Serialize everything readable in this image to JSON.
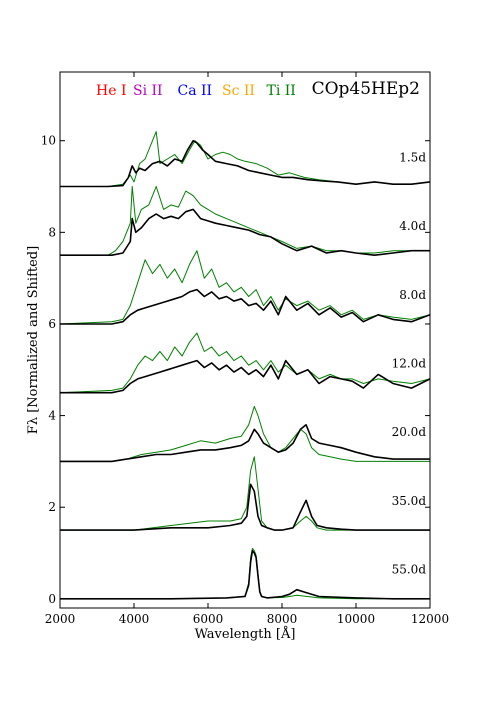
{
  "chart_data": {
    "type": "line",
    "title": "COp45HEp2",
    "xlabel": "Wavelength [Å]",
    "ylabel": "Fλ [Normalized and Shifted]",
    "xlim": [
      2000,
      12000
    ],
    "ylim": [
      -0.2,
      11.5
    ],
    "xticks": [
      "2000",
      "4000",
      "6000",
      "8000",
      "10000",
      "12000"
    ],
    "yticks": [
      "0",
      "2",
      "4",
      "6",
      "8",
      "10"
    ],
    "legend": {
      "placement": "top-left",
      "entries": [
        {
          "name": "He I",
          "color": "#ff0000"
        },
        {
          "name": "Si II",
          "color": "#bf00bf"
        },
        {
          "name": "Ca II",
          "color": "#0000ff"
        },
        {
          "name": "Sc II",
          "color": "#ffa500"
        },
        {
          "name": "Ti II",
          "color": "#008000"
        }
      ]
    },
    "epochs": [
      {
        "label": "1.5d",
        "offset": 9.0
      },
      {
        "label": "4.0d",
        "offset": 7.5
      },
      {
        "label": "8.0d",
        "offset": 6.0
      },
      {
        "label": "12.0d",
        "offset": 4.5
      },
      {
        "label": "20.0d",
        "offset": 3.0
      },
      {
        "label": "35.0d",
        "offset": 1.5
      },
      {
        "label": "55.0d",
        "offset": 0.0
      }
    ],
    "series": [
      {
        "epoch": "1.5d",
        "color": "#000000",
        "x": [
          2000,
          3300,
          3700,
          3850,
          3950,
          4050,
          4150,
          4300,
          4500,
          4700,
          4900,
          5100,
          5300,
          5450,
          5600,
          5700,
          5850,
          6000,
          6200,
          6500,
          6800,
          7100,
          7400,
          7700,
          8000,
          8300,
          8700,
          9100,
          9500,
          10000,
          10500,
          11000,
          11500,
          12000
        ],
        "y": [
          9.0,
          9.0,
          9.02,
          9.2,
          9.45,
          9.3,
          9.4,
          9.35,
          9.5,
          9.55,
          9.45,
          9.6,
          9.55,
          9.8,
          10.0,
          9.95,
          9.8,
          9.7,
          9.55,
          9.5,
          9.45,
          9.35,
          9.3,
          9.25,
          9.2,
          9.2,
          9.15,
          9.12,
          9.1,
          9.05,
          9.1,
          9.05,
          9.05,
          9.1
        ]
      },
      {
        "epoch": "1.5d",
        "color": "#008000",
        "x": [
          2000,
          3300,
          3700,
          3900,
          4000,
          4150,
          4300,
          4500,
          4600,
          4700,
          4900,
          5100,
          5300,
          5500,
          5650,
          5800,
          6000,
          6200,
          6400,
          6600,
          6800,
          7000,
          7300,
          7600,
          7900,
          8200,
          8600,
          9000,
          9500,
          10000,
          10500,
          11000,
          11500,
          12000
        ],
        "y": [
          9.0,
          9.0,
          9.05,
          9.25,
          9.1,
          9.5,
          9.6,
          10.0,
          10.2,
          9.5,
          9.6,
          9.7,
          9.5,
          9.8,
          10.0,
          9.9,
          9.6,
          9.7,
          9.75,
          9.7,
          9.6,
          9.55,
          9.5,
          9.4,
          9.25,
          9.3,
          9.2,
          9.15,
          9.1,
          9.05,
          9.1,
          9.05,
          9.05,
          9.1
        ]
      },
      {
        "epoch": "4.0d",
        "color": "#000000",
        "x": [
          2000,
          3400,
          3700,
          3900,
          3950,
          4050,
          4200,
          4400,
          4600,
          4800,
          5000,
          5200,
          5400,
          5600,
          5800,
          6000,
          6200,
          6500,
          6800,
          7100,
          7400,
          7700,
          8000,
          8400,
          8800,
          9200,
          9600,
          10000,
          10500,
          11000,
          11500,
          12000
        ],
        "y": [
          7.5,
          7.5,
          7.55,
          7.8,
          8.3,
          8.0,
          8.1,
          8.3,
          8.4,
          8.3,
          8.35,
          8.3,
          8.45,
          8.5,
          8.3,
          8.25,
          8.2,
          8.15,
          8.1,
          8.05,
          7.95,
          7.9,
          7.75,
          7.6,
          7.7,
          7.55,
          7.6,
          7.55,
          7.5,
          7.55,
          7.6,
          7.6
        ]
      },
      {
        "epoch": "4.0d",
        "color": "#008000",
        "x": [
          2000,
          3300,
          3500,
          3700,
          3900,
          3950,
          4050,
          4200,
          4400,
          4600,
          4800,
          5000,
          5200,
          5400,
          5600,
          5800,
          6000,
          6200,
          6500,
          6800,
          7100,
          7400,
          7700,
          8000,
          8400,
          8800,
          9200,
          9600,
          10000,
          10500,
          11000,
          11500,
          12000
        ],
        "y": [
          7.5,
          7.5,
          7.6,
          7.8,
          8.2,
          9.0,
          8.2,
          8.5,
          8.6,
          9.0,
          8.5,
          8.6,
          8.55,
          8.9,
          8.8,
          8.6,
          8.5,
          8.4,
          8.3,
          8.2,
          8.1,
          8.0,
          7.9,
          7.8,
          7.65,
          7.7,
          7.6,
          7.6,
          7.55,
          7.55,
          7.6,
          7.6,
          7.6
        ]
      },
      {
        "epoch": "8.0d",
        "color": "#000000",
        "x": [
          2000,
          3400,
          3700,
          3900,
          4100,
          4300,
          4500,
          4700,
          4900,
          5100,
          5300,
          5500,
          5700,
          5900,
          6100,
          6300,
          6500,
          6700,
          6900,
          7100,
          7300,
          7500,
          7700,
          7900,
          8100,
          8400,
          8700,
          9000,
          9300,
          9600,
          9900,
          10200,
          10600,
          11000,
          11500,
          12000
        ],
        "y": [
          6.0,
          6.0,
          6.05,
          6.2,
          6.3,
          6.35,
          6.4,
          6.45,
          6.5,
          6.55,
          6.6,
          6.7,
          6.75,
          6.6,
          6.7,
          6.55,
          6.6,
          6.5,
          6.55,
          6.4,
          6.45,
          6.3,
          6.5,
          6.2,
          6.6,
          6.3,
          6.45,
          6.2,
          6.35,
          6.15,
          6.25,
          6.05,
          6.2,
          6.1,
          6.05,
          6.2
        ]
      },
      {
        "epoch": "8.0d",
        "color": "#008000",
        "x": [
          2000,
          3400,
          3700,
          3900,
          4100,
          4300,
          4500,
          4700,
          4900,
          5100,
          5300,
          5500,
          5700,
          5900,
          6100,
          6300,
          6500,
          6700,
          6900,
          7100,
          7300,
          7500,
          7700,
          7900,
          8100,
          8400,
          8700,
          9000,
          9300,
          9600,
          9900,
          10200,
          10600,
          11000,
          11500,
          12000
        ],
        "y": [
          6.0,
          6.05,
          6.1,
          6.4,
          6.9,
          7.4,
          7.1,
          7.3,
          7.0,
          7.2,
          6.9,
          7.3,
          7.6,
          7.0,
          7.2,
          6.8,
          6.9,
          6.7,
          6.8,
          6.6,
          6.75,
          6.4,
          6.6,
          6.3,
          6.55,
          6.4,
          6.5,
          6.3,
          6.4,
          6.2,
          6.3,
          6.1,
          6.2,
          6.15,
          6.1,
          6.2
        ]
      },
      {
        "epoch": "12.0d",
        "color": "#000000",
        "x": [
          2000,
          3400,
          3700,
          3900,
          4100,
          4300,
          4500,
          4700,
          4900,
          5100,
          5300,
          5500,
          5700,
          5900,
          6100,
          6300,
          6500,
          6700,
          6900,
          7100,
          7300,
          7500,
          7700,
          7900,
          8100,
          8400,
          8700,
          9000,
          9300,
          9600,
          9900,
          10200,
          10600,
          11000,
          11500,
          12000
        ],
        "y": [
          4.5,
          4.5,
          4.55,
          4.7,
          4.8,
          4.85,
          4.9,
          4.95,
          5.0,
          5.05,
          5.1,
          5.15,
          5.2,
          5.05,
          5.15,
          5.0,
          5.1,
          4.95,
          5.05,
          4.9,
          5.0,
          4.85,
          5.1,
          4.8,
          5.2,
          4.9,
          5.0,
          4.7,
          4.85,
          4.8,
          4.75,
          4.6,
          4.9,
          4.7,
          4.6,
          4.8
        ]
      },
      {
        "epoch": "12.0d",
        "color": "#008000",
        "x": [
          2000,
          3400,
          3700,
          3900,
          4100,
          4300,
          4500,
          4700,
          4900,
          5100,
          5300,
          5500,
          5700,
          5900,
          6100,
          6300,
          6500,
          6700,
          6900,
          7100,
          7300,
          7500,
          7700,
          7900,
          8100,
          8400,
          8700,
          9000,
          9300,
          9600,
          9900,
          10200,
          10600,
          11000,
          11500,
          12000
        ],
        "y": [
          4.5,
          4.55,
          4.6,
          4.8,
          5.1,
          5.3,
          5.2,
          5.4,
          5.2,
          5.5,
          5.3,
          5.6,
          5.8,
          5.4,
          5.5,
          5.3,
          5.4,
          5.2,
          5.3,
          5.1,
          5.2,
          5.0,
          5.2,
          4.95,
          5.1,
          4.9,
          5.0,
          4.8,
          4.9,
          4.8,
          4.8,
          4.7,
          4.8,
          4.75,
          4.7,
          4.8
        ]
      },
      {
        "epoch": "20.0d",
        "color": "#000000",
        "x": [
          2000,
          3400,
          3800,
          4200,
          4600,
          5000,
          5400,
          5800,
          6200,
          6600,
          6900,
          7100,
          7250,
          7350,
          7500,
          7700,
          7900,
          8100,
          8300,
          8500,
          8650,
          8800,
          9000,
          9300,
          9600,
          10000,
          10500,
          11000,
          11500,
          12000
        ],
        "y": [
          3.0,
          3.0,
          3.05,
          3.1,
          3.15,
          3.15,
          3.2,
          3.25,
          3.25,
          3.3,
          3.35,
          3.45,
          3.7,
          3.6,
          3.4,
          3.3,
          3.2,
          3.25,
          3.4,
          3.7,
          3.8,
          3.5,
          3.4,
          3.35,
          3.3,
          3.2,
          3.1,
          3.05,
          3.05,
          3.05
        ]
      },
      {
        "epoch": "20.0d",
        "color": "#008000",
        "x": [
          2000,
          3400,
          3800,
          4200,
          4600,
          5000,
          5400,
          5800,
          6200,
          6600,
          6900,
          7100,
          7250,
          7350,
          7500,
          7700,
          7900,
          8100,
          8300,
          8500,
          8650,
          8800,
          9000,
          9300,
          9600,
          10000,
          10500,
          11000,
          11500,
          12000
        ],
        "y": [
          3.0,
          3.0,
          3.05,
          3.15,
          3.2,
          3.25,
          3.35,
          3.45,
          3.4,
          3.5,
          3.55,
          3.8,
          4.2,
          4.0,
          3.6,
          3.3,
          3.2,
          3.3,
          3.5,
          3.7,
          3.6,
          3.3,
          3.15,
          3.1,
          3.05,
          3.0,
          3.0,
          3.0,
          3.0,
          3.0
        ]
      },
      {
        "epoch": "35.0d",
        "color": "#000000",
        "x": [
          2000,
          4000,
          5000,
          6000,
          6600,
          6900,
          7050,
          7150,
          7250,
          7350,
          7450,
          7600,
          7800,
          8000,
          8300,
          8500,
          8650,
          8800,
          8950,
          9200,
          9600,
          10000,
          11000,
          12000
        ],
        "y": [
          1.5,
          1.5,
          1.55,
          1.55,
          1.6,
          1.65,
          1.8,
          2.5,
          2.35,
          1.8,
          1.6,
          1.55,
          1.5,
          1.5,
          1.55,
          1.9,
          2.15,
          1.8,
          1.6,
          1.55,
          1.52,
          1.5,
          1.5,
          1.5
        ]
      },
      {
        "epoch": "35.0d",
        "color": "#008000",
        "x": [
          2000,
          4000,
          5000,
          6000,
          6600,
          6900,
          7050,
          7150,
          7250,
          7350,
          7450,
          7600,
          7800,
          8000,
          8300,
          8500,
          8650,
          8800,
          8950,
          9200,
          9600,
          10000,
          11000,
          12000
        ],
        "y": [
          1.5,
          1.5,
          1.6,
          1.7,
          1.7,
          1.75,
          2.0,
          2.8,
          3.1,
          2.4,
          1.7,
          1.55,
          1.5,
          1.5,
          1.55,
          1.7,
          1.8,
          1.7,
          1.55,
          1.5,
          1.5,
          1.5,
          1.5,
          1.5
        ]
      },
      {
        "epoch": "55.0d",
        "color": "#000000",
        "x": [
          2000,
          5000,
          6500,
          7000,
          7100,
          7150,
          7200,
          7250,
          7300,
          7350,
          7400,
          7450,
          7600,
          8000,
          8200,
          8400,
          8600,
          9000,
          10000,
          11000,
          12000
        ],
        "y": [
          0.0,
          0.0,
          0.02,
          0.05,
          0.3,
          0.8,
          1.05,
          1.0,
          0.9,
          0.5,
          0.15,
          0.05,
          0.02,
          0.05,
          0.1,
          0.2,
          0.15,
          0.05,
          0.02,
          0.0,
          0.0
        ]
      },
      {
        "epoch": "55.0d",
        "color": "#008000",
        "x": [
          2000,
          5000,
          6500,
          7000,
          7100,
          7150,
          7200,
          7250,
          7300,
          7350,
          7400,
          7450,
          7600,
          8000,
          8200,
          8400,
          8600,
          9000,
          10000,
          11000,
          12000
        ],
        "y": [
          0.0,
          0.0,
          0.02,
          0.06,
          0.35,
          0.9,
          1.1,
          1.05,
          0.95,
          0.55,
          0.18,
          0.06,
          0.02,
          0.03,
          0.05,
          0.08,
          0.06,
          0.02,
          0.0,
          0.0,
          0.0
        ]
      }
    ]
  }
}
